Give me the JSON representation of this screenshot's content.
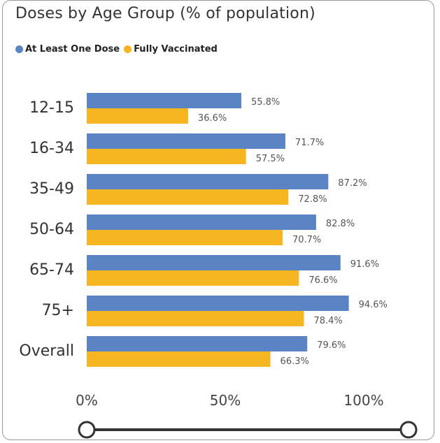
{
  "chart_data": {
    "type": "bar",
    "orientation": "horizontal",
    "title": "Doses by Age Group (% of population)",
    "categories": [
      "12-15",
      "16-34",
      "35-49",
      "50-64",
      "65-74",
      "75+",
      "Overall"
    ],
    "series": [
      {
        "name": "At Least One Dose",
        "values": [
          55.8,
          71.7,
          87.2,
          82.8,
          91.6,
          94.6,
          79.6
        ],
        "labels": [
          "55.8%",
          "71.7%",
          "87.2%",
          "82.8%",
          "91.6%",
          "94.6%",
          "79.6%"
        ]
      },
      {
        "name": "Fully Vaccinated",
        "values": [
          36.6,
          57.5,
          72.8,
          70.7,
          76.6,
          78.4,
          66.3
        ],
        "labels": [
          "36.6%",
          "57.5%",
          "72.8%",
          "70.7%",
          "76.6%",
          "78.4%",
          "66.3%"
        ]
      }
    ],
    "colors": [
      "#5b84c4",
      "#f5b622"
    ],
    "xlim": [
      0,
      100
    ],
    "xticks": [
      0,
      50,
      100
    ],
    "xtick_labels": [
      "0%",
      "50%",
      "100%"
    ],
    "grid": false,
    "legend_position": "top-left"
  },
  "slider": {
    "range": [
      0,
      100
    ]
  }
}
